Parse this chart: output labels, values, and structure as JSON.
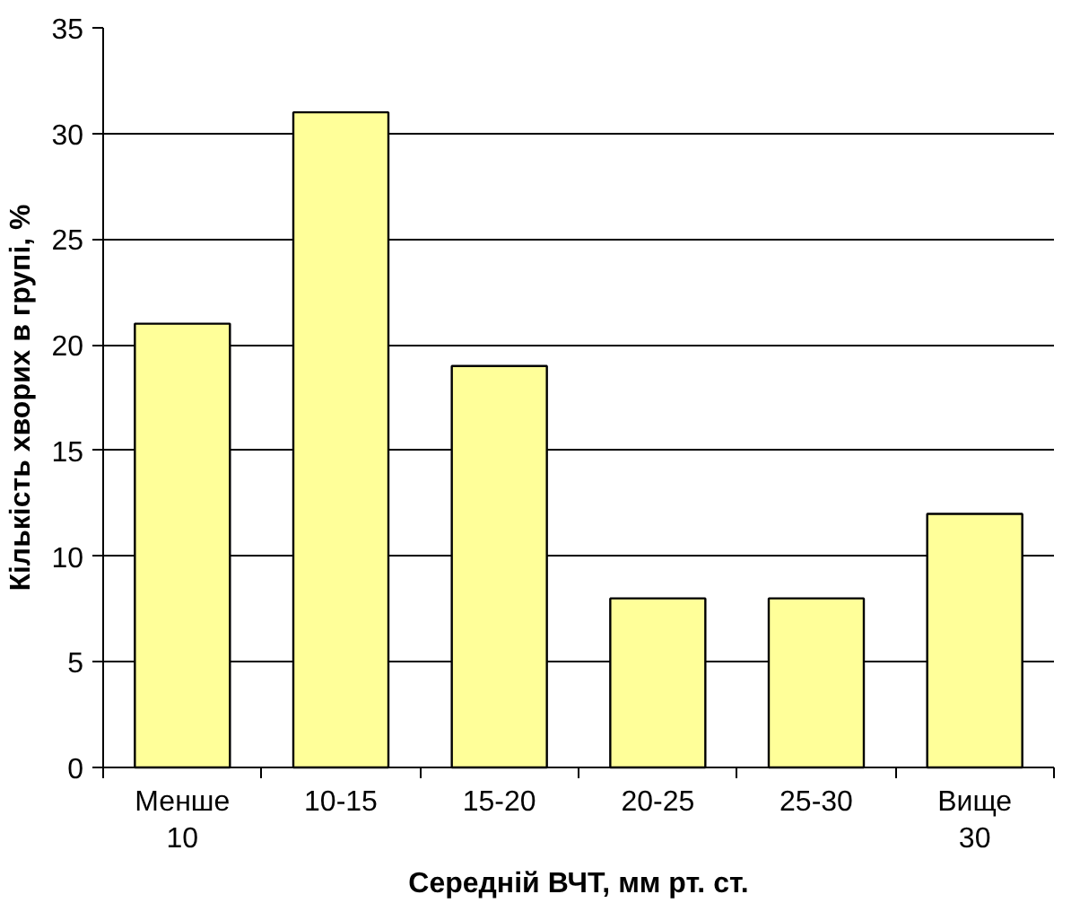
{
  "chart_data": {
    "type": "bar",
    "xlabel": "Середній ВЧТ, мм рт. ст.",
    "ylabel": "Кількість хворих в групі, %",
    "categories": [
      "Менше 10",
      "10-15",
      "15-20",
      "20-25",
      "25-30",
      "Вище 30"
    ],
    "values": [
      21,
      31,
      19,
      8,
      8,
      12
    ],
    "color": "#ffff99",
    "ylim": [
      0,
      35
    ],
    "yticks": [
      0,
      5,
      10,
      15,
      20,
      25,
      30,
      35
    ],
    "grid": "y"
  }
}
